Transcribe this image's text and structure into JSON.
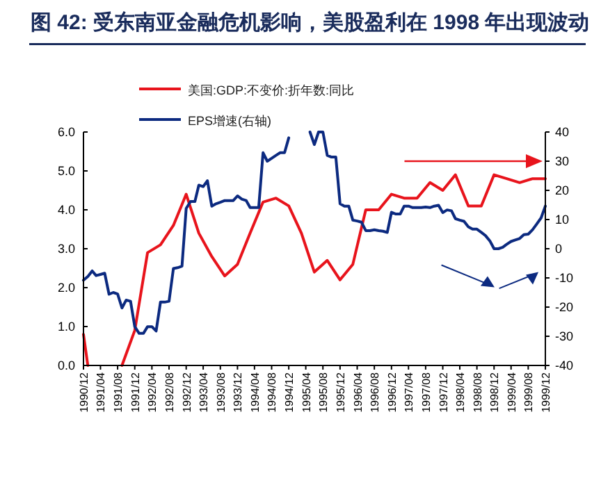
{
  "chart_data": {
    "type": "line",
    "title": "图 42: 受东南亚金融危机影响，美股盈利在 1998 年出现波动",
    "legend": "top",
    "xlim": [
      "1990-12",
      "1999-12"
    ],
    "xticks": [
      {
        "value": "1990-12",
        "label": "1990/12"
      },
      {
        "value": "1991-04",
        "label": "1991/04"
      },
      {
        "value": "1991-08",
        "label": "1991/08"
      },
      {
        "value": "1991-12",
        "label": "1991/12"
      },
      {
        "value": "1992-04",
        "label": "1992/04"
      },
      {
        "value": "1992-08",
        "label": "1992/08"
      },
      {
        "value": "1992-12",
        "label": "1992/12"
      },
      {
        "value": "1993-04",
        "label": "1993/04"
      },
      {
        "value": "1993-08",
        "label": "1993/08"
      },
      {
        "value": "1993-12",
        "label": "1993/12"
      },
      {
        "value": "1994-04",
        "label": "1994/04"
      },
      {
        "value": "1994-08",
        "label": "1994/08"
      },
      {
        "value": "1994-12",
        "label": "1994/12"
      },
      {
        "value": "1995-04",
        "label": "1995/04"
      },
      {
        "value": "1995-08",
        "label": "1995/08"
      },
      {
        "value": "1995-12",
        "label": "1995/12"
      },
      {
        "value": "1996-04",
        "label": "1996/04"
      },
      {
        "value": "1996-08",
        "label": "1996/08"
      },
      {
        "value": "1996-12",
        "label": "1996/12"
      },
      {
        "value": "1997-04",
        "label": "1997/04"
      },
      {
        "value": "1997-08",
        "label": "1997/08"
      },
      {
        "value": "1997-12",
        "label": "1997/12"
      },
      {
        "value": "1998-04",
        "label": "1998/04"
      },
      {
        "value": "1998-08",
        "label": "1998/08"
      },
      {
        "value": "1998-12",
        "label": "1998/12"
      },
      {
        "value": "1999-04",
        "label": "1999/04"
      },
      {
        "value": "1999-08",
        "label": "1999/08"
      },
      {
        "value": "1999-12",
        "label": "1999/12"
      }
    ],
    "ylim": [
      0,
      6
    ],
    "yticks": [
      {
        "value": 0,
        "label": "0.0"
      },
      {
        "value": 1,
        "label": "1.0"
      },
      {
        "value": 2,
        "label": "2.0"
      },
      {
        "value": 3,
        "label": "3.0"
      },
      {
        "value": 4,
        "label": "4.0"
      },
      {
        "value": 5,
        "label": "5.0"
      },
      {
        "value": 6,
        "label": "6.0"
      }
    ],
    "y2lim": [
      -40,
      40
    ],
    "y2ticks": [
      -40,
      -30,
      -20,
      -10,
      0,
      10,
      20,
      30,
      40
    ],
    "series": [
      {
        "name": "美国:GDP:不变价:折年数:同比",
        "color": "#e8141c",
        "x": [
          "1990-12",
          "1991-01",
          "1991-03",
          "1991-06",
          "1991-09",
          "1991-12",
          "1992-03",
          "1992-06",
          "1992-09",
          "1992-12",
          "1993-03",
          "1993-06",
          "1993-09",
          "1993-12",
          "1994-03",
          "1994-06",
          "1994-09",
          "1994-12",
          "1995-03",
          "1995-06",
          "1995-09",
          "1995-12",
          "1996-03",
          "1996-06",
          "1996-09",
          "1996-12",
          "1997-03",
          "1997-06",
          "1997-09",
          "1997-12",
          "1998-03",
          "1998-06",
          "1998-09",
          "1998-12",
          "1999-03",
          "1999-06",
          "1999-09",
          "1999-12"
        ],
        "values": [
          0.8,
          0,
          null,
          null,
          0,
          0.9,
          2.9,
          3.1,
          3.6,
          4.4,
          3.4,
          2.8,
          2.3,
          2.6,
          3.4,
          4.2,
          4.3,
          4.1,
          3.4,
          2.4,
          2.7,
          2.2,
          2.6,
          4.0,
          4.0,
          4.4,
          4.3,
          4.3,
          4.7,
          4.5,
          4.9,
          4.1,
          4.1,
          4.9,
          4.8,
          4.7,
          4.8,
          4.8
        ]
      },
      {
        "name": "EPS增速(右轴)",
        "color": "#0c2a80",
        "axis": "y2",
        "x": [
          "1990-12",
          "1991-01",
          "1991-02",
          "1991-03",
          "1991-04",
          "1991-05",
          "1991-06",
          "1991-07",
          "1991-08",
          "1991-09",
          "1991-10",
          "1991-11",
          "1991-12",
          "1992-01",
          "1992-02",
          "1992-03",
          "1992-04",
          "1992-05",
          "1992-06",
          "1992-07",
          "1992-08",
          "1992-09",
          "1992-10",
          "1992-11",
          "1992-12",
          "1993-01",
          "1993-02",
          "1993-03",
          "1993-04",
          "1993-05",
          "1993-06",
          "1993-07",
          "1993-08",
          "1993-09",
          "1993-10",
          "1993-11",
          "1993-12",
          "1994-01",
          "1994-02",
          "1994-03",
          "1994-04",
          "1994-05",
          "1994-06",
          "1994-07",
          "1994-08",
          "1994-09",
          "1994-10",
          "1994-11",
          "1994-12",
          "1995-01",
          "1995-02",
          "1995-03",
          "1995-04",
          "1995-05",
          "1995-06",
          "1995-07",
          "1995-08",
          "1995-09",
          "1995-10",
          "1995-11",
          "1995-12",
          "1996-01",
          "1996-02",
          "1996-03",
          "1996-04",
          "1996-05",
          "1996-06",
          "1996-07",
          "1996-08",
          "1996-09",
          "1996-10",
          "1996-11",
          "1996-12",
          "1997-01",
          "1997-02",
          "1997-03",
          "1997-04",
          "1997-05",
          "1997-06",
          "1997-07",
          "1997-08",
          "1997-09",
          "1997-10",
          "1997-11",
          "1997-12",
          "1998-01",
          "1998-02",
          "1998-03",
          "1998-04",
          "1998-05",
          "1998-06",
          "1998-07",
          "1998-08",
          "1998-09",
          "1998-10",
          "1998-11",
          "1998-12",
          "1999-01",
          "1999-02",
          "1999-03",
          "1999-04",
          "1999-05",
          "1999-06",
          "1999-07",
          "1999-08",
          "1999-09",
          "1999-10",
          "1999-11",
          "1999-12"
        ],
        "values": [
          -10.8,
          -9.5,
          -7.6,
          -9.2,
          -8.8,
          -8.4,
          -15.6,
          -15,
          -15.5,
          -20.3,
          -17.6,
          -18,
          -26.7,
          -29,
          -29,
          -26.7,
          -26.7,
          -28.2,
          -18.3,
          -18.3,
          -18,
          -6.8,
          -6.5,
          -6,
          13.8,
          16.2,
          16.2,
          21.8,
          21.3,
          23.3,
          14.6,
          15.4,
          15.9,
          16.5,
          16.5,
          16.5,
          18.1,
          17,
          16.5,
          14.1,
          14.1,
          14.1,
          32.9,
          30,
          31,
          32,
          32.9,
          32.9,
          38,
          null,
          null,
          null,
          null,
          40,
          35.7,
          40,
          40,
          32,
          31.4,
          31.4,
          15.4,
          14.6,
          14.6,
          9.8,
          9.5,
          9.1,
          6.2,
          6.2,
          6.5,
          6.2,
          6,
          5.6,
          12.5,
          11.9,
          11.9,
          14.6,
          14.6,
          14.1,
          14.1,
          14.1,
          14.3,
          14.1,
          14.6,
          14.9,
          12.4,
          13.3,
          13,
          10.3,
          9.8,
          9.4,
          7.5,
          6.7,
          6.7,
          5.6,
          4.5,
          2.7,
          0,
          0,
          0.5,
          1.5,
          2.5,
          3,
          3.5,
          4.8,
          5,
          6.5,
          8.5,
          10.6,
          14.6
        ]
      }
    ]
  }
}
